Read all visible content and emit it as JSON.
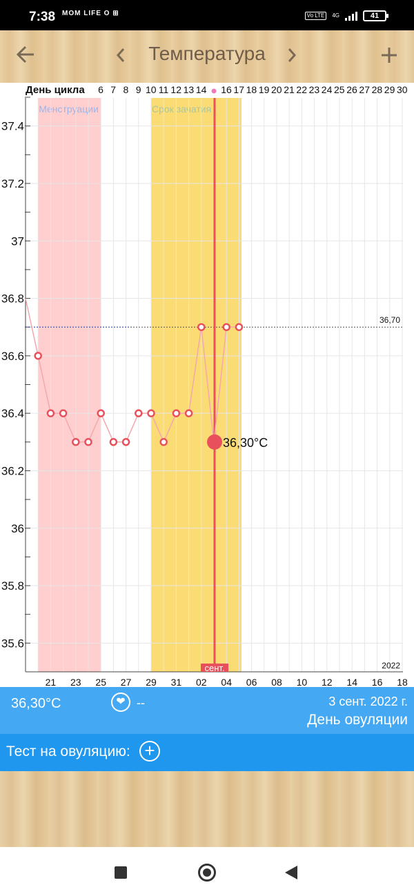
{
  "status_bar": {
    "time": "7:38",
    "left_icons": "MOM LIFE  O  ⊞",
    "volte": "Vo LTE",
    "network": "4G",
    "battery": "41"
  },
  "toolbar": {
    "back_icon": "arrow-left-icon",
    "prev_icon": "chevron-left-icon",
    "title": "Температура",
    "next_icon": "chevron-right-icon",
    "add_icon": "plus-icon"
  },
  "chart_data": {
    "type": "line",
    "cycle_label": "День цикла",
    "cycle_days": [
      "6",
      "7",
      "8",
      "9",
      "10",
      "11",
      "12",
      "13",
      "14",
      "15",
      "16",
      "17",
      "18",
      "19",
      "20",
      "21",
      "22",
      "23",
      "24",
      "25",
      "26",
      "27",
      "28",
      "29",
      "30"
    ],
    "date_ticks": [
      "21",
      "23",
      "25",
      "27",
      "29",
      "31",
      "02",
      "04",
      "06",
      "08",
      "10",
      "12",
      "14",
      "16",
      "18"
    ],
    "y_ticks": [
      "37.4",
      "37.2",
      "37",
      "36.8",
      "36.6",
      "36.4",
      "36.2",
      "36",
      "35.8",
      "35.6"
    ],
    "ylim": [
      35.5,
      37.5
    ],
    "threshold": 36.7,
    "threshold_label": "36,70",
    "year_label": "2022",
    "month_label": "сент.",
    "bands": [
      {
        "label": "Менструации",
        "color": "#ffcfcf",
        "from": "20 авг.",
        "to": "25 авг."
      },
      {
        "label": "Срок зачатия",
        "color": "#fbdc74",
        "from": "29 авг.",
        "to": "5 сент."
      }
    ],
    "series": [
      {
        "values": [
          {
            "date": "19 авг.",
            "t": 36.8
          },
          {
            "date": "20 авг.",
            "t": 36.6
          },
          {
            "date": "21 авг.",
            "t": 36.4
          },
          {
            "date": "22 авг.",
            "t": 36.4
          },
          {
            "date": "23 авг.",
            "t": 36.3
          },
          {
            "date": "24 авг.",
            "t": 36.3
          },
          {
            "date": "25 авг.",
            "t": 36.4
          },
          {
            "date": "26 авг.",
            "t": 36.3
          },
          {
            "date": "27 авг.",
            "t": 36.3
          },
          {
            "date": "28 авг.",
            "t": 36.4
          },
          {
            "date": "29 авг.",
            "t": 36.4
          },
          {
            "date": "30 авг.",
            "t": 36.3
          },
          {
            "date": "31 авг.",
            "t": 36.4
          },
          {
            "date": "1 сент.",
            "t": 36.4
          },
          {
            "date": "2 сент.",
            "t": 36.7
          },
          {
            "date": "3 сент.",
            "t": 36.3
          },
          {
            "date": "4 сент.",
            "t": 36.7
          },
          {
            "date": "5 сент.",
            "t": 36.7
          }
        ],
        "color": "#e8505b"
      }
    ],
    "selected": {
      "date": "3 сент.",
      "label": "36,30°C"
    }
  },
  "info": {
    "temperature": "36,30°C",
    "heart_icon": "heart-icon",
    "dash": "--",
    "date": "3 сент. 2022 г.",
    "day_type": "День овуляции"
  },
  "test": {
    "label": "Тест на овуляцию:",
    "add_icon": "plus-circle-icon"
  },
  "nav": {
    "recents_icon": "square-icon",
    "home_icon": "home-circle-icon",
    "back_icon": "back-triangle-icon"
  }
}
